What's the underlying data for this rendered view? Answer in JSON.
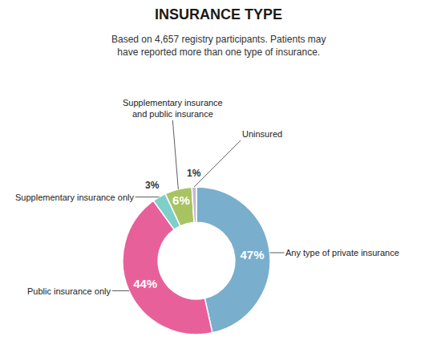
{
  "chart_data": {
    "type": "pie",
    "title": "INSURANCE TYPE",
    "subtitle": "Based on 4,657 registry participants. Patients may\nhave reported more than one type of insurance.",
    "categories": [
      "Any type of private insurance",
      "Public insurance only",
      "Supplementary insurance only",
      "Supplementary insurance\nand public insurance",
      "Uninsured"
    ],
    "values": [
      47,
      44,
      3,
      6,
      1
    ],
    "value_labels": [
      "47%",
      "44%",
      "3%",
      "6%",
      "1%"
    ],
    "colors": [
      "#7aaecd",
      "#e8609a",
      "#7ecfc9",
      "#a8c462",
      "#c4b8d8"
    ],
    "data_labels": true
  }
}
